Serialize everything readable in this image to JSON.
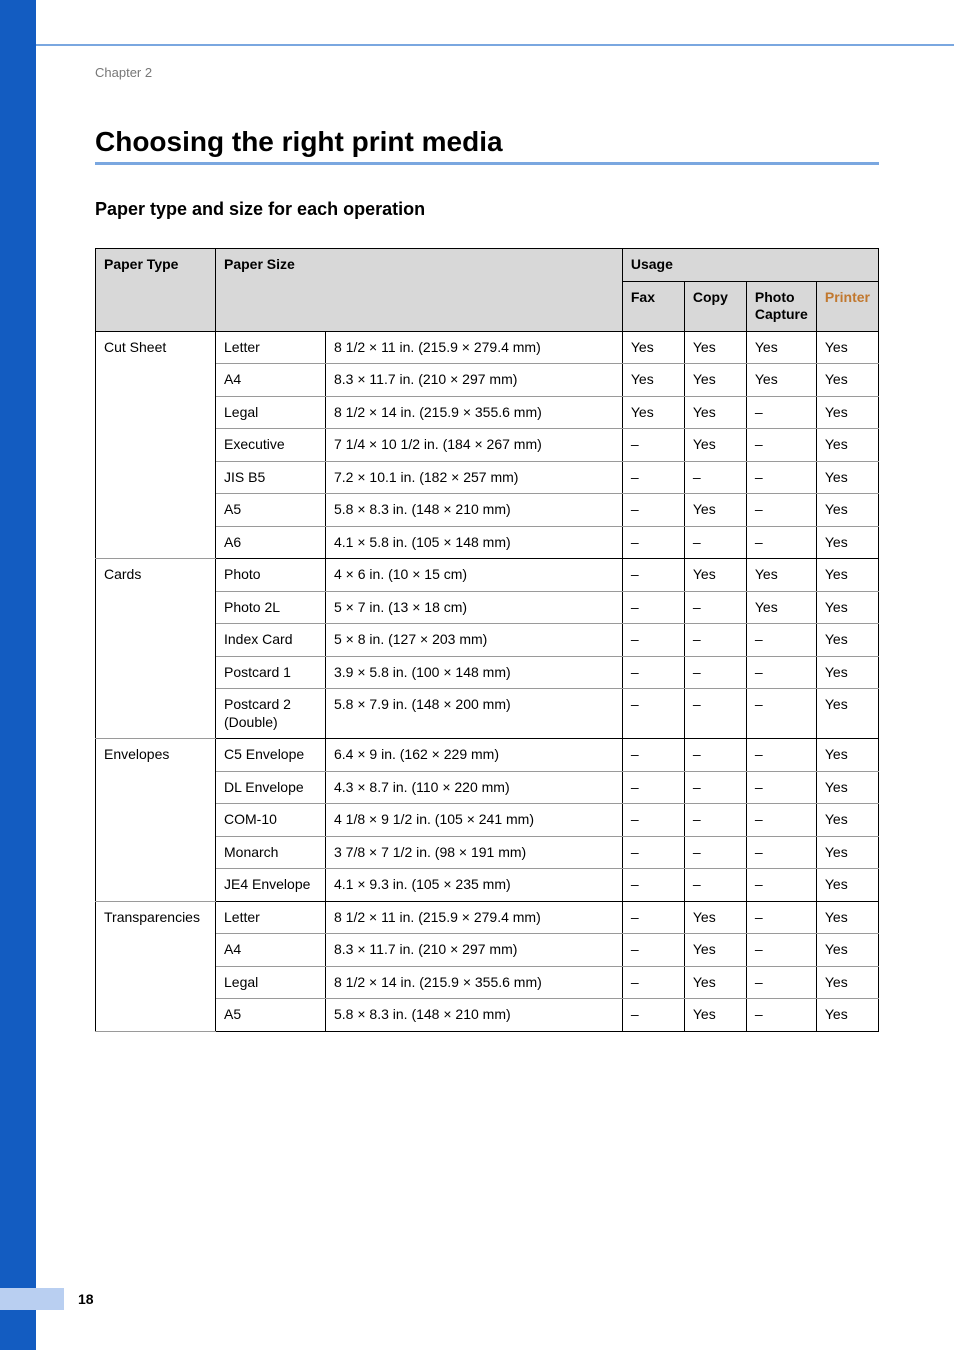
{
  "chapter_label": "Chapter 2",
  "section_title": "Choosing the right print media",
  "subsection_title": "Paper type and size for each operation",
  "page_number": "18",
  "colors": {
    "left_bar": "#135cc1",
    "title_rule": "#7aa7e0",
    "header_bg": "#d8d8d8",
    "printer_header": "#c1782f",
    "footer_bar": "#b9cff1"
  },
  "table": {
    "headers": {
      "paper_type": "Paper Type",
      "paper_size": "Paper Size",
      "usage": "Usage",
      "fax": "Fax",
      "copy": "Copy",
      "photo_capture": "Photo Capture",
      "printer": "Printer"
    },
    "groups": [
      {
        "label": "Cut Sheet",
        "rows": [
          {
            "size_name": "Letter",
            "size_dim": "8 1/2 × 11 in. (215.9 × 279.4 mm)",
            "fax": "Yes",
            "copy": "Yes",
            "photo": "Yes",
            "printer": "Yes"
          },
          {
            "size_name": "A4",
            "size_dim": "8.3 × 11.7 in. (210 × 297 mm)",
            "fax": "Yes",
            "copy": "Yes",
            "photo": "Yes",
            "printer": "Yes"
          },
          {
            "size_name": "Legal",
            "size_dim": "8 1/2 × 14 in. (215.9 × 355.6 mm)",
            "fax": "Yes",
            "copy": "Yes",
            "photo": "–",
            "printer": "Yes"
          },
          {
            "size_name": "Executive",
            "size_dim": "7 1/4 × 10 1/2 in. (184 × 267 mm)",
            "fax": "–",
            "copy": "Yes",
            "photo": "–",
            "printer": "Yes"
          },
          {
            "size_name": "JIS B5",
            "size_dim": "7.2 × 10.1 in. (182 × 257 mm)",
            "fax": "–",
            "copy": "–",
            "photo": "–",
            "printer": "Yes"
          },
          {
            "size_name": "A5",
            "size_dim": "5.8 × 8.3 in. (148 × 210 mm)",
            "fax": "–",
            "copy": "Yes",
            "photo": "–",
            "printer": "Yes"
          },
          {
            "size_name": "A6",
            "size_dim": "4.1 × 5.8 in. (105 × 148 mm)",
            "fax": "–",
            "copy": "–",
            "photo": "–",
            "printer": "Yes"
          }
        ]
      },
      {
        "label": "Cards",
        "rows": [
          {
            "size_name": "Photo",
            "size_dim": "4 × 6 in. (10 × 15 cm)",
            "fax": "–",
            "copy": "Yes",
            "photo": "Yes",
            "printer": "Yes"
          },
          {
            "size_name": "Photo 2L",
            "size_dim": "5 × 7 in. (13 × 18 cm)",
            "fax": "–",
            "copy": "–",
            "photo": "Yes",
            "printer": "Yes"
          },
          {
            "size_name": "Index Card",
            "size_dim": "5 × 8 in. (127 × 203 mm)",
            "fax": "–",
            "copy": "–",
            "photo": "–",
            "printer": "Yes"
          },
          {
            "size_name": "Postcard 1",
            "size_dim": "3.9 × 5.8 in. (100 × 148 mm)",
            "fax": "–",
            "copy": "–",
            "photo": "–",
            "printer": "Yes"
          },
          {
            "size_name": "Postcard 2 (Double)",
            "size_dim": "5.8 × 7.9 in. (148 × 200 mm)",
            "fax": "–",
            "copy": "–",
            "photo": "–",
            "printer": "Yes"
          }
        ]
      },
      {
        "label": "Envelopes",
        "rows": [
          {
            "size_name": "C5 Envelope",
            "size_dim": "6.4 × 9 in. (162 × 229 mm)",
            "fax": "–",
            "copy": "–",
            "photo": "–",
            "printer": "Yes"
          },
          {
            "size_name": "DL Envelope",
            "size_dim": "4.3 × 8.7 in. (110 × 220 mm)",
            "fax": "–",
            "copy": "–",
            "photo": "–",
            "printer": "Yes"
          },
          {
            "size_name": "COM-10",
            "size_dim": "4 1/8 × 9 1/2 in. (105 × 241 mm)",
            "fax": "–",
            "copy": "–",
            "photo": "–",
            "printer": "Yes"
          },
          {
            "size_name": "Monarch",
            "size_dim": "3 7/8 × 7 1/2 in. (98 × 191 mm)",
            "fax": "–",
            "copy": "–",
            "photo": "–",
            "printer": "Yes"
          },
          {
            "size_name": "JE4 Envelope",
            "size_dim": "4.1 × 9.3 in. (105 × 235 mm)",
            "fax": "–",
            "copy": "–",
            "photo": "–",
            "printer": "Yes"
          }
        ]
      },
      {
        "label": "Transparencies",
        "rows": [
          {
            "size_name": "Letter",
            "size_dim": "8 1/2 × 11 in. (215.9 × 279.4 mm)",
            "fax": "–",
            "copy": "Yes",
            "photo": "–",
            "printer": "Yes"
          },
          {
            "size_name": "A4",
            "size_dim": "8.3 × 11.7 in. (210 × 297 mm)",
            "fax": "–",
            "copy": "Yes",
            "photo": "–",
            "printer": "Yes"
          },
          {
            "size_name": "Legal",
            "size_dim": "8 1/2 × 14 in. (215.9 × 355.6 mm)",
            "fax": "–",
            "copy": "Yes",
            "photo": "–",
            "printer": "Yes"
          },
          {
            "size_name": "A5",
            "size_dim": "5.8 × 8.3 in. (148 × 210 mm)",
            "fax": "–",
            "copy": "Yes",
            "photo": "–",
            "printer": "Yes"
          }
        ]
      }
    ]
  }
}
